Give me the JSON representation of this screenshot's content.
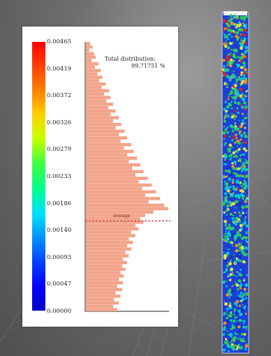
{
  "legend": {
    "ticks": [
      "0.00465",
      "0.00419",
      "0.00372",
      "0.00326",
      "0.00279",
      "0.00233",
      "0.00186",
      "0.00140",
      "0.00093",
      "0.00047",
      "0.00000"
    ]
  },
  "annotation": {
    "total_label": "Total distribution:",
    "total_value": "99.71751 %",
    "average_label": "average"
  },
  "colors": {
    "histogram_fill": "#f2a48a",
    "average_line": "#c0392b"
  },
  "chart_data": {
    "type": "bar",
    "orientation": "horizontal",
    "ylim": [
      0.0,
      0.00465
    ],
    "y_bins_fraction_of_max_count": [
      0.05,
      0.08,
      0.04,
      0.1,
      0.12,
      0.07,
      0.15,
      0.11,
      0.18,
      0.14,
      0.2,
      0.16,
      0.24,
      0.19,
      0.28,
      0.22,
      0.3,
      0.25,
      0.33,
      0.27,
      0.36,
      0.3,
      0.4,
      0.33,
      0.43,
      0.36,
      0.47,
      0.4,
      0.5,
      0.42,
      0.55,
      0.46,
      0.58,
      0.5,
      0.62,
      0.52,
      0.66,
      0.56,
      0.7,
      0.6,
      0.75,
      0.64,
      0.8,
      0.68,
      0.85,
      0.72,
      0.9,
      0.76,
      0.95,
      1.0,
      0.82,
      0.72,
      0.66,
      0.7,
      0.6,
      0.64,
      0.55,
      0.6,
      0.52,
      0.57,
      0.5,
      0.55,
      0.48,
      0.52,
      0.45,
      0.5,
      0.44,
      0.48,
      0.42,
      0.46,
      0.4,
      0.45,
      0.38,
      0.44,
      0.36,
      0.42,
      0.34,
      0.4,
      0.33,
      0.38
    ],
    "average_value": 0.00156
  }
}
